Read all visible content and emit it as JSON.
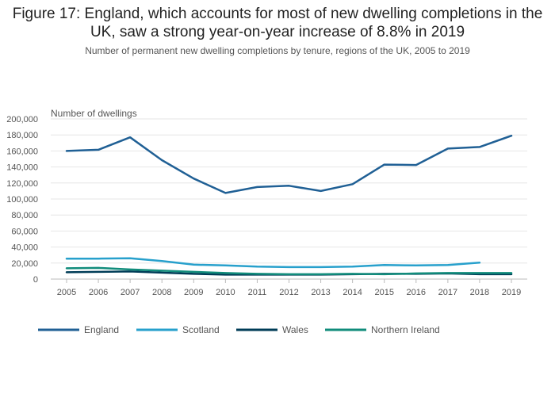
{
  "chart_data": {
    "type": "line",
    "title": "Figure 17: England, which accounts for most of new dwelling completions in the UK, saw a strong year-on-year increase of 8.8% in 2019",
    "subtitle": "Number of permanent new dwelling completions by tenure, regions of the UK, 2005 to 2019",
    "ylabel": "Number of dwellings",
    "xlabel": "",
    "ylim": [
      0,
      200000
    ],
    "yticks": [
      0,
      20000,
      40000,
      60000,
      80000,
      100000,
      120000,
      140000,
      160000,
      180000,
      200000
    ],
    "ytick_labels": [
      "0",
      "20,000",
      "40,000",
      "60,000",
      "80,000",
      "100,000",
      "120,000",
      "140,000",
      "160,000",
      "180,000",
      "200,000"
    ],
    "categories": [
      "2005",
      "2006",
      "2007",
      "2008",
      "2009",
      "2010",
      "2011",
      "2012",
      "2013",
      "2014",
      "2015",
      "2016",
      "2017",
      "2018",
      "2019"
    ],
    "legend_position": "bottom",
    "series": [
      {
        "name": "England",
        "color": "#206095",
        "values": [
          160000,
          161500,
          177000,
          148500,
          125500,
          107500,
          115000,
          116500,
          110000,
          118500,
          143000,
          142500,
          163000,
          165000,
          179000
        ]
      },
      {
        "name": "Scotland",
        "color": "#27a0cc",
        "values": [
          25500,
          25500,
          26000,
          22500,
          18000,
          17000,
          15500,
          15000,
          15000,
          15500,
          17500,
          17000,
          17500,
          20500,
          null
        ]
      },
      {
        "name": "Wales",
        "color": "#003c57",
        "values": [
          8500,
          9000,
          9500,
          8000,
          6500,
          5500,
          5500,
          5500,
          5500,
          6000,
          6500,
          6500,
          7000,
          6000,
          6000
        ]
      },
      {
        "name": "Northern Ireland",
        "color": "#118c7b",
        "values": [
          13500,
          14000,
          12000,
          10500,
          9000,
          7500,
          6500,
          6000,
          6000,
          6500,
          6000,
          7000,
          7500,
          7500,
          7500
        ]
      }
    ]
  }
}
